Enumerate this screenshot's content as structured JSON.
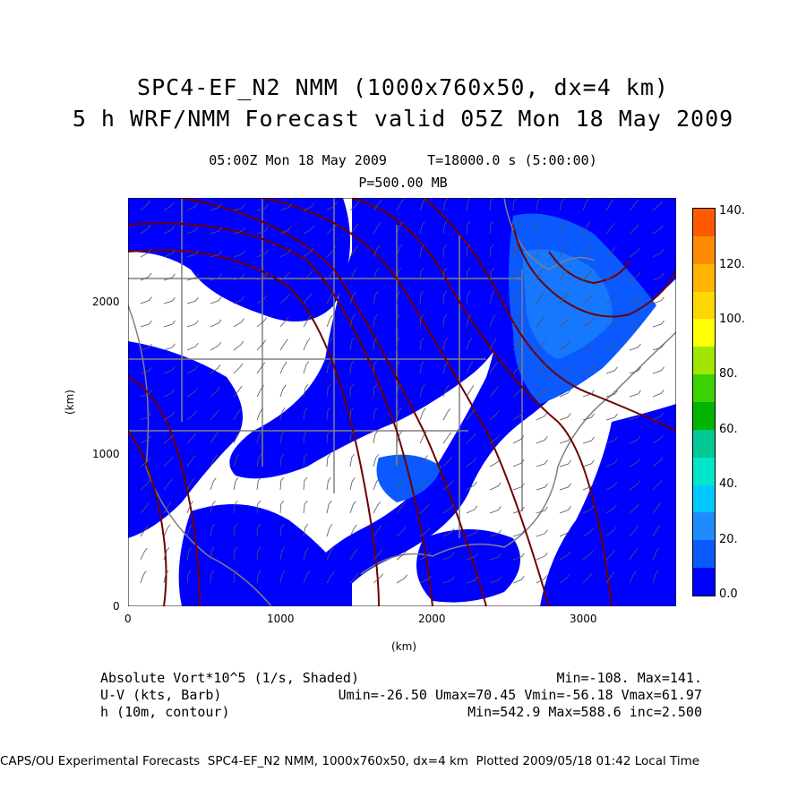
{
  "titles": {
    "line1": "SPC4-EF_N2 NMM (1000x760x50, dx=4 km)",
    "line2": "5 h WRF/NMM Forecast valid 05Z Mon 18 May 2009",
    "time": "05:00Z Mon 18 May 2009     T=18000.0 s (5:00:00)",
    "level": "P=500.00 MB"
  },
  "axes": {
    "x_label": "(km)",
    "y_label": "(km)",
    "x_ticks": [
      "0",
      "1000",
      "2000",
      "3000"
    ],
    "y_ticks": [
      "0",
      "1000",
      "2000"
    ]
  },
  "colorbar": {
    "labels": [
      "0.0",
      "20.",
      "40.",
      "60.",
      "80.",
      "100.",
      "120.",
      "140."
    ],
    "colors": [
      "#0000ff",
      "#0a5aff",
      "#1e8cff",
      "#00c8ff",
      "#00e6c8",
      "#00c896",
      "#00b400",
      "#3cd200",
      "#a0e600",
      "#ffff00",
      "#ffd700",
      "#ffb400",
      "#ff8c00",
      "#ff5a00"
    ]
  },
  "legend": {
    "row1_left": "Absolute Vort*10^5 (1/s, Shaded)",
    "row1_right": "Min=-108. Max=141.",
    "row2_left": "U-V (kts, Barb)",
    "row2_right": "Umin=-26.50 Umax=70.45 Vmin=-56.18 Vmax=61.97",
    "row3_left": "h (10m, contour)",
    "row3_right": "Min=542.9 Max=588.6 inc=2.500"
  },
  "footer": "CAPS/OU Experimental Forecasts  SPC4-EF_N2 NMM, 1000x760x50, dx=4 km  Plotted 2009/05/18 01:42 Local Time",
  "map_colors": {
    "vort_low": "#0000ff",
    "vort_mid": "#0a5aff",
    "vort_high": "#1e8cff",
    "contour": "#6e0000",
    "borders": "#808080"
  }
}
